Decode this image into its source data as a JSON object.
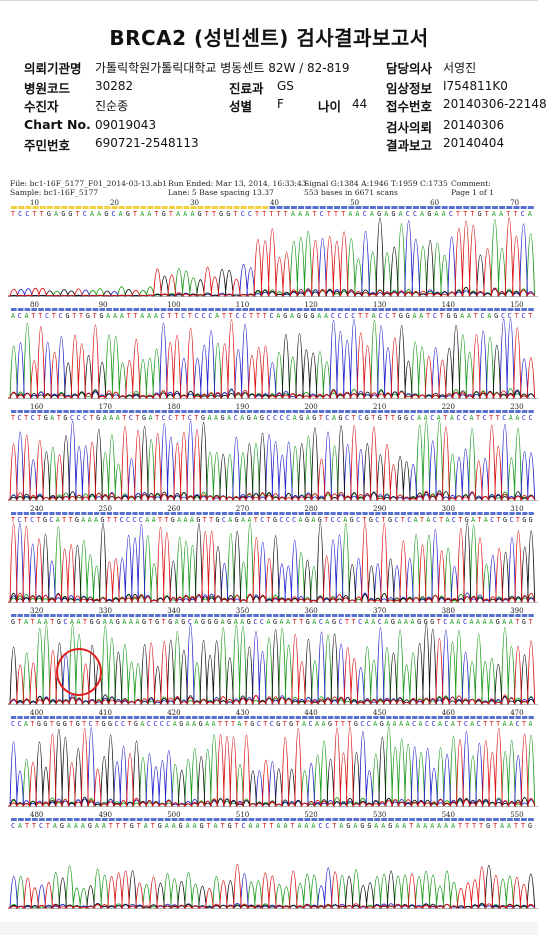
{
  "report": {
    "title": "BRCA2 (성빈센트) 검사결과보고서",
    "fields": [
      {
        "label": "의뢰기관명",
        "value": "가톨릭학원가톨릭대학교 병동센트 82W / 82-819"
      },
      {
        "label": "병원코드",
        "value": "30282"
      },
      {
        "label": "수진자",
        "value": "진순종"
      },
      {
        "label": "Chart No.",
        "value": "09019043"
      },
      {
        "label": "주민번호",
        "value": "690721-2548113"
      },
      {
        "label": "진료과",
        "value": "GS"
      },
      {
        "label": "성별",
        "value": "F"
      },
      {
        "label": "나이",
        "value": "44"
      },
      {
        "label": "담당의사",
        "value": "서영진"
      },
      {
        "label": "임상정보",
        "value": "I754811K0"
      },
      {
        "label": "접수번호",
        "value": "20140306-22148"
      },
      {
        "label": "검사의뢰",
        "value": "20140306"
      },
      {
        "label": "결과보고",
        "value": "20140404"
      }
    ]
  },
  "chromatogram": {
    "header": {
      "file": "File: bc1-16F_5177_F01_2014-03-13.ab1",
      "sample": "Sample: bc1-16F_5177",
      "run_ended": "Run Ended: Mar 13, 2014, 16:33:43",
      "lane": "Lane: 5   Base spacing 13.37",
      "signal": "Signal G:1384 A:1946 T:1959 C:1735",
      "bases": "553 bases in 6671 scans",
      "comment": "Comment:",
      "page": "Page 1 of 1"
    },
    "panels": [
      {
        "ticks": [
          "10",
          "20",
          "30",
          "40",
          "50",
          "60",
          "70"
        ],
        "sequence": "TCCTTGAGGTCAAGCAGTAATGTAAAGTTGGTCCTTTTTAAATCTTTAACAGAGACCAGAACTTTGTAATTCA"
      },
      {
        "ticks": [
          "80",
          "90",
          "100",
          "110",
          "120",
          "130",
          "140",
          "150"
        ],
        "sequence": "ACATTCTCGTTGTGAAATTAAACTTCTCCCATTCCTTTCAGAGGGAACCCCTTACCTGGAATCTGGAATCAGCCTCT"
      },
      {
        "ticks": [
          "160",
          "170",
          "180",
          "190",
          "200",
          "210",
          "220",
          "230"
        ],
        "sequence": "TCTCTGATGCCCTGAAATCTGATCCTTCTGAAGACAGAGCCCCAGAGTCAGCTCGTGTTGGCAACATACCATCTTCAACC"
      },
      {
        "ticks": [
          "240",
          "250",
          "260",
          "270",
          "280",
          "290",
          "300",
          "310"
        ],
        "sequence": "TCTCTGCATTGAAAGTTCCCCAATTGAAAGTTGCAGAATCTGCCCAGAGTCCAGCTGCTGCTCATACTACTGATACTGCTGG"
      },
      {
        "ticks": [
          "320",
          "330",
          "340",
          "350",
          "360",
          "370",
          "380",
          "390"
        ],
        "sequence": "GTATAATGCAATGGAAGAAAGTGTGAGCAGGGAGAAGCCAGAATTGACAGCTTCAACAGAAAGGGTCAACAAAAGAATGT"
      },
      {
        "ticks": [
          "400",
          "410",
          "420",
          "430",
          "440",
          "450",
          "460",
          "470"
        ],
        "sequence": "CCATGGTGGTGTCTGGCCTGACCCCAGAAGAATTTATGCTCGTGTACAAGTTTGCCAGAAAACACCACATCACTTTAACTA"
      },
      {
        "ticks": [
          "480",
          "490",
          "500",
          "510",
          "520",
          "530",
          "540",
          "550"
        ],
        "sequence": "CATTCTAGAAAGAATTTGTATGAAGAAGTATGTCAATTAATAAACCTAGAGGAAGAATAAAAAATTTTGTAATTG"
      }
    ]
  },
  "colors": {
    "A": "#1a9a1a",
    "C": "#2222cc",
    "G": "#111111",
    "T": "#dd1111",
    "mark": "#e02020"
  }
}
